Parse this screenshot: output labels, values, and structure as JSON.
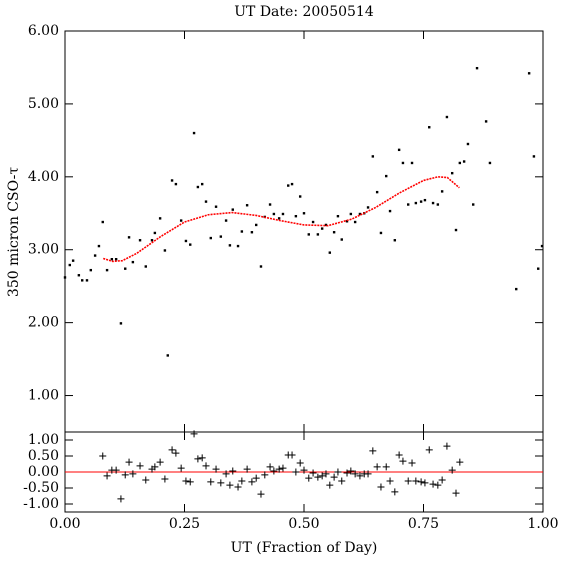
{
  "chart_data": [
    {
      "type": "scatter",
      "title": "UT Date: 20050514",
      "ylabel": "350 micron CSO-τ",
      "xlim": [
        0,
        1
      ],
      "ylim": [
        0.5,
        6.0
      ],
      "grid": false,
      "yticks": [
        {
          "value": 1,
          "label": "1.00"
        },
        {
          "value": 2,
          "label": "2.00"
        },
        {
          "value": 3,
          "label": "3.00"
        },
        {
          "value": 4,
          "label": "4.00"
        },
        {
          "value": 5,
          "label": "5.00"
        },
        {
          "value": 6,
          "label": "6.00"
        }
      ],
      "series": [
        {
          "style": "dot",
          "color": "#000000",
          "x": [
            0.0,
            0.01,
            0.017,
            0.029,
            0.036,
            0.046,
            0.054,
            0.063,
            0.071,
            0.079,
            0.088,
            0.098,
            0.107,
            0.117,
            0.126,
            0.134,
            0.142,
            0.157,
            0.169,
            0.182,
            0.188,
            0.199,
            0.209,
            0.215,
            0.224,
            0.232,
            0.243,
            0.253,
            0.262,
            0.27,
            0.278,
            0.287,
            0.295,
            0.305,
            0.316,
            0.326,
            0.337,
            0.345,
            0.351,
            0.362,
            0.37,
            0.381,
            0.391,
            0.4,
            0.41,
            0.418,
            0.429,
            0.437,
            0.448,
            0.456,
            0.467,
            0.475,
            0.483,
            0.492,
            0.5,
            0.51,
            0.519,
            0.529,
            0.538,
            0.546,
            0.554,
            0.563,
            0.571,
            0.579,
            0.59,
            0.598,
            0.607,
            0.617,
            0.626,
            0.634,
            0.644,
            0.653,
            0.661,
            0.672,
            0.68,
            0.69,
            0.699,
            0.707,
            0.718,
            0.726,
            0.734,
            0.745,
            0.753,
            0.762,
            0.77,
            0.78,
            0.789,
            0.799,
            0.81,
            0.818,
            0.826,
            0.835,
            0.843,
            0.854,
            0.862,
            0.881,
            0.889,
            0.944,
            0.971,
            0.981,
            0.99,
            0.998
          ],
          "values": [
            2.62,
            2.79,
            2.85,
            2.65,
            2.58,
            2.58,
            2.72,
            2.92,
            3.05,
            3.38,
            2.72,
            2.87,
            2.87,
            1.99,
            2.74,
            3.17,
            2.83,
            3.13,
            2.77,
            3.13,
            3.23,
            3.43,
            2.99,
            1.55,
            3.95,
            3.9,
            3.4,
            3.12,
            3.07,
            4.6,
            3.86,
            3.9,
            3.66,
            3.16,
            3.59,
            3.18,
            3.4,
            3.06,
            3.55,
            3.05,
            3.25,
            3.61,
            3.24,
            3.34,
            2.77,
            3.45,
            3.62,
            3.49,
            3.43,
            3.49,
            3.88,
            3.9,
            3.46,
            3.73,
            3.5,
            3.21,
            3.38,
            3.21,
            3.29,
            3.34,
            2.96,
            3.24,
            3.46,
            3.14,
            3.39,
            3.49,
            3.38,
            3.49,
            3.5,
            3.58,
            4.28,
            3.79,
            3.23,
            4.01,
            3.53,
            3.13,
            4.37,
            4.19,
            3.62,
            4.19,
            3.64,
            3.66,
            3.68,
            4.68,
            3.64,
            3.62,
            3.8,
            4.82,
            4.05,
            3.27,
            4.19,
            4.21,
            4.45,
            3.62,
            5.49,
            4.76,
            4.19,
            2.46,
            5.42,
            4.28,
            2.74,
            3.05
          ]
        },
        {
          "style": "line",
          "color": "#ff0000",
          "x": [
            0.08,
            0.1,
            0.12,
            0.15,
            0.2,
            0.25,
            0.3,
            0.35,
            0.4,
            0.45,
            0.5,
            0.55,
            0.6,
            0.65,
            0.7,
            0.75,
            0.78,
            0.8,
            0.825
          ],
          "values": [
            2.88,
            2.84,
            2.85,
            2.95,
            3.18,
            3.38,
            3.48,
            3.51,
            3.47,
            3.4,
            3.34,
            3.33,
            3.42,
            3.58,
            3.78,
            3.95,
            4.0,
            3.99,
            3.85
          ]
        }
      ]
    },
    {
      "type": "scatter",
      "xlabel": "UT (Fraction of Day)",
      "xlim": [
        0,
        1
      ],
      "ylim": [
        -1.25,
        1.25
      ],
      "grid": false,
      "hline": 0,
      "hline_color": "#ff0000",
      "xticks": [
        {
          "value": 0,
          "label": "0.00"
        },
        {
          "value": 0.25,
          "label": "0.25"
        },
        {
          "value": 0.5,
          "label": "0.50"
        },
        {
          "value": 0.75,
          "label": "0.75"
        },
        {
          "value": 1,
          "label": "1.00"
        }
      ],
      "yticks": [
        {
          "value": 1,
          "label": "1.00"
        },
        {
          "value": 0.5,
          "label": "0.50"
        },
        {
          "value": 0,
          "label": "0.00"
        },
        {
          "value": -0.5,
          "label": "-0.50"
        },
        {
          "value": -1,
          "label": "-1.00"
        }
      ],
      "series": [
        {
          "style": "plus",
          "color": "#000000",
          "x": [
            0.079,
            0.088,
            0.098,
            0.107,
            0.117,
            0.126,
            0.134,
            0.142,
            0.157,
            0.169,
            0.182,
            0.188,
            0.199,
            0.209,
            0.224,
            0.232,
            0.243,
            0.253,
            0.262,
            0.27,
            0.278,
            0.287,
            0.295,
            0.305,
            0.316,
            0.326,
            0.337,
            0.345,
            0.351,
            0.362,
            0.37,
            0.381,
            0.391,
            0.4,
            0.41,
            0.418,
            0.429,
            0.437,
            0.448,
            0.456,
            0.467,
            0.475,
            0.483,
            0.492,
            0.5,
            0.51,
            0.519,
            0.529,
            0.538,
            0.546,
            0.554,
            0.563,
            0.571,
            0.579,
            0.59,
            0.598,
            0.607,
            0.617,
            0.626,
            0.634,
            0.644,
            0.653,
            0.661,
            0.672,
            0.68,
            0.69,
            0.699,
            0.707,
            0.718,
            0.726,
            0.734,
            0.745,
            0.753,
            0.762,
            0.77,
            0.78,
            0.789,
            0.799,
            0.81,
            0.818,
            0.826
          ],
          "values": [
            0.5,
            -0.12,
            0.06,
            0.06,
            -0.84,
            -0.09,
            0.31,
            -0.06,
            0.19,
            -0.25,
            0.09,
            0.16,
            0.31,
            -0.22,
            0.69,
            0.59,
            0.12,
            -0.28,
            -0.31,
            1.19,
            0.41,
            0.44,
            0.19,
            -0.31,
            0.09,
            -0.34,
            -0.06,
            -0.41,
            0.03,
            -0.47,
            -0.28,
            0.09,
            -0.31,
            -0.19,
            -0.69,
            -0.09,
            0.16,
            0.03,
            0.09,
            0.12,
            0.53,
            0.53,
            0.0,
            0.28,
            0.06,
            -0.19,
            -0.03,
            -0.16,
            -0.12,
            -0.06,
            -0.41,
            -0.16,
            0.0,
            -0.28,
            -0.03,
            0.03,
            -0.06,
            -0.12,
            -0.06,
            -0.06,
            0.66,
            0.16,
            -0.47,
            0.16,
            -0.28,
            -0.62,
            0.53,
            0.34,
            -0.28,
            0.28,
            -0.28,
            -0.31,
            -0.34,
            0.69,
            -0.38,
            -0.41,
            -0.25,
            0.81,
            0.06,
            -0.66,
            0.31
          ]
        }
      ]
    }
  ]
}
